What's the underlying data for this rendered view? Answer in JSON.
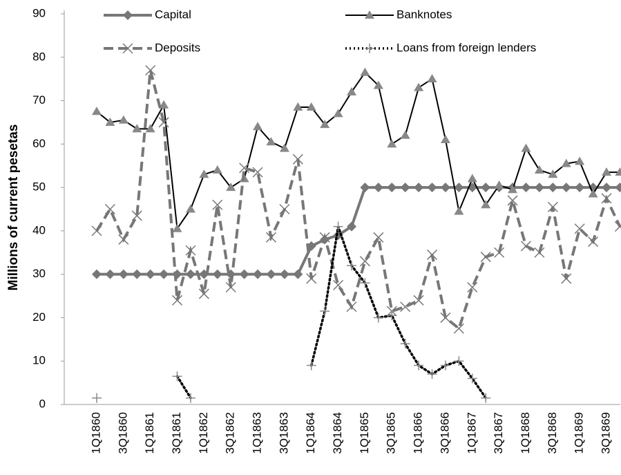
{
  "chart_data": {
    "type": "line",
    "y_label": "Millions of current pesetas",
    "categories": [
      "1Q1860",
      null,
      "3Q1860",
      null,
      "1Q1861",
      null,
      "3Q1861",
      null,
      "1Q1862",
      null,
      "3Q1862",
      null,
      "1Q1863",
      null,
      "3Q1863",
      null,
      "1Q1864",
      null,
      "3Q1864",
      null,
      "1Q1865",
      null,
      "3Q1865",
      null,
      "1Q1866",
      null,
      "3Q1866",
      null,
      "1Q1867",
      null,
      "3Q1867",
      null,
      "1Q1868",
      null,
      "3Q1868",
      null,
      "1Q1869",
      null,
      "3Q1869",
      null
    ],
    "series": [
      {
        "name": "Capital",
        "color": "#777777",
        "marker": "diamond",
        "line_style": "solid",
        "values": [
          30,
          30,
          30,
          30,
          30,
          30,
          30,
          30,
          30,
          30,
          30,
          30,
          30,
          30,
          30,
          30,
          36.5,
          38,
          39,
          41,
          50,
          50,
          50,
          50,
          50,
          50,
          50,
          50,
          50,
          50,
          50,
          50,
          50,
          50,
          50,
          50,
          50,
          50,
          50,
          50
        ]
      },
      {
        "name": "Banknotes",
        "color": "#000000",
        "marker_color": "#888888",
        "marker": "triangle",
        "line_style": "solid",
        "values": [
          67.5,
          65,
          65.5,
          63.5,
          63.5,
          69,
          40.5,
          45,
          53,
          54,
          50,
          52,
          64,
          60.5,
          59,
          68.5,
          68.5,
          64.5,
          67,
          72,
          76.5,
          73.5,
          60,
          62,
          73,
          75,
          61,
          44.5,
          52,
          46,
          50.5,
          49.5,
          59,
          54,
          53,
          55.5,
          56,
          48.5,
          53.5,
          53.5
        ]
      },
      {
        "name": "Deposits",
        "color": "#777777",
        "marker": "x",
        "line_style": "dashed",
        "values": [
          40,
          45,
          38,
          43.5,
          77,
          65,
          24,
          35.5,
          25.5,
          46,
          27,
          54.5,
          53.5,
          38.5,
          45,
          56.5,
          29,
          38.5,
          27.5,
          22.5,
          33,
          38.5,
          21.5,
          22.5,
          24,
          34.5,
          20,
          17.5,
          27,
          34,
          35,
          47,
          36.5,
          35,
          45.5,
          29,
          40.5,
          37.5,
          47.5,
          41
        ]
      },
      {
        "name": "Loans from foreign lenders",
        "color": "#000000",
        "marker_color": "#888888",
        "marker": "plus",
        "line_style": "dotted",
        "values": [
          1.5,
          null,
          null,
          null,
          null,
          null,
          6.5,
          1.5,
          null,
          null,
          null,
          null,
          null,
          null,
          null,
          null,
          9,
          21.5,
          41,
          32,
          28,
          20,
          20.5,
          14,
          9,
          7,
          9,
          10,
          6,
          1.5,
          null,
          null,
          null,
          null,
          null,
          null,
          null,
          null,
          null,
          null
        ]
      }
    ],
    "ylim": [
      0,
      90
    ],
    "yticks": [
      0,
      10,
      20,
      30,
      40,
      50,
      60,
      70,
      80,
      90
    ],
    "grid": false
  }
}
